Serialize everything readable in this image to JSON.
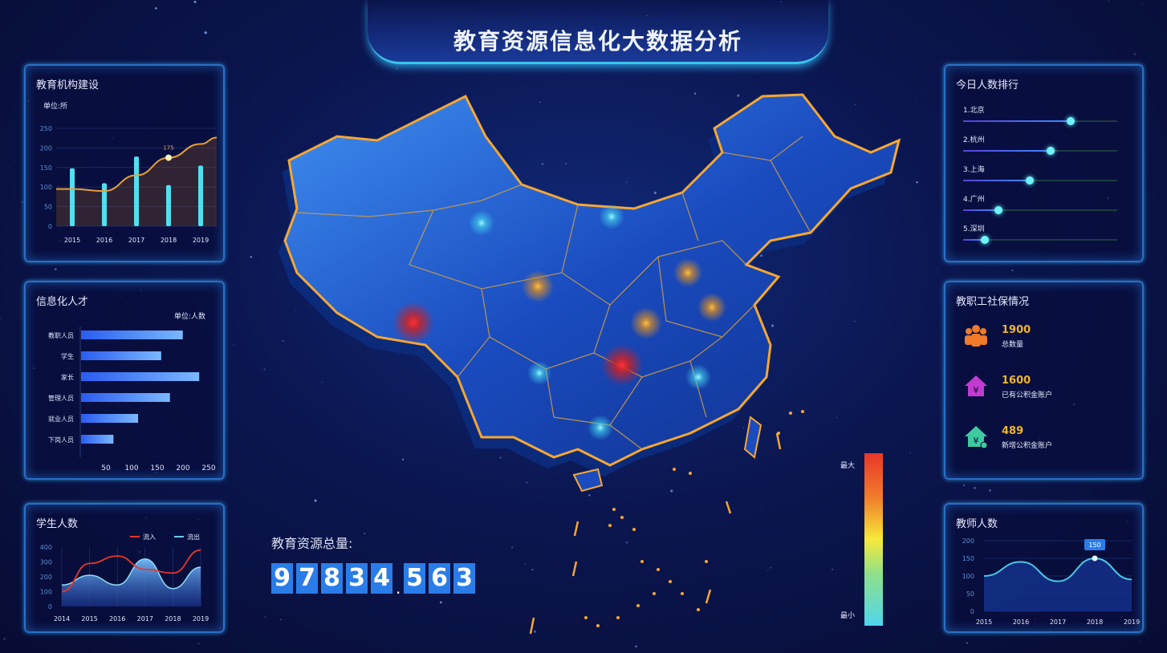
{
  "title": "教育资源信息化大数据分析",
  "colors": {
    "accent": "#2a7de8",
    "border": "#2a6fc4",
    "bar": "#4fe0f0",
    "line": "#e8a035",
    "inflow": "#e8372a",
    "outflow": "#6fc8f0",
    "stat": "#f0b429"
  },
  "panels": {
    "institutions": {
      "title": "教育机构建设",
      "unit": "单位:所"
    },
    "talent": {
      "title": "信息化人才",
      "unit": "单位:人数"
    },
    "students": {
      "title": "学生人数"
    },
    "ranking": {
      "title": "今日人数排行",
      "items": [
        {
          "label": "1.北京",
          "value": 0.7
        },
        {
          "label": "2.杭州",
          "value": 0.57
        },
        {
          "label": "3.上海",
          "value": 0.43
        },
        {
          "label": "4.广州",
          "value": 0.23
        },
        {
          "label": "5.深圳",
          "value": 0.14
        }
      ]
    },
    "social": {
      "title": "教职工社保情况",
      "items": [
        {
          "value": "1900",
          "label": "总数量",
          "icon": "people-group-icon",
          "color": "#f07a2a"
        },
        {
          "value": "1600",
          "label": "已有公积金账户",
          "icon": "house-money-icon",
          "color": "#c23ad0"
        },
        {
          "value": "489",
          "label": "新增公积金账户",
          "icon": "house-add-icon",
          "color": "#3fc9a0"
        }
      ]
    },
    "teachers": {
      "title": "教师人数"
    }
  },
  "total": {
    "label": "教育资源总量:",
    "digits": [
      "9",
      "7",
      "8",
      "3",
      "4",
      ".",
      "5",
      "6",
      "3"
    ]
  },
  "legend": {
    "max": "最大",
    "min": "最小"
  },
  "chart_data": [
    {
      "type": "bar",
      "title": "教育机构建设",
      "categories": [
        "2015",
        "2016",
        "2017",
        "2018",
        "2019"
      ],
      "series": [
        {
          "type": "bar",
          "values": [
            148,
            110,
            178,
            105,
            155
          ]
        },
        {
          "type": "line",
          "values": [
            95,
            90,
            130,
            175,
            210
          ]
        }
      ],
      "annotation": "175",
      "ylim": [
        0,
        250
      ],
      "yticks": [
        "0",
        "50",
        "100",
        "150",
        "200",
        "250"
      ],
      "grid": true
    },
    {
      "type": "bar",
      "orientation": "horizontal",
      "title": "信息化人才",
      "categories": [
        "教职人员",
        "学生",
        "家长",
        "管理人员",
        "就业人员",
        "下岗人员"
      ],
      "values": [
        198,
        156,
        230,
        173,
        111,
        63
      ],
      "xticks": [
        "50",
        "100",
        "150",
        "200",
        "250"
      ],
      "xlim": [
        0,
        250
      ]
    },
    {
      "type": "line",
      "title": "学生人数",
      "categories": [
        "2014",
        "2015",
        "2016",
        "2017",
        "2018",
        "2019"
      ],
      "series": [
        {
          "name": "流入",
          "values": [
            100,
            290,
            340,
            250,
            225,
            380
          ]
        },
        {
          "name": "流出",
          "values": [
            145,
            210,
            145,
            320,
            120,
            265
          ]
        }
      ],
      "ylim": [
        0,
        400
      ],
      "yticks": [
        "0",
        "100",
        "200",
        "300",
        "400"
      ],
      "legend": "top-right"
    },
    {
      "type": "area",
      "title": "教师人数",
      "categories": [
        "2015",
        "2016",
        "2017",
        "2018",
        "2019"
      ],
      "values": [
        100,
        140,
        85,
        150,
        90
      ],
      "annotation": "150",
      "ylim": [
        0,
        200
      ],
      "yticks": [
        "0",
        "50",
        "100",
        "150",
        "200"
      ],
      "grid": true
    }
  ]
}
